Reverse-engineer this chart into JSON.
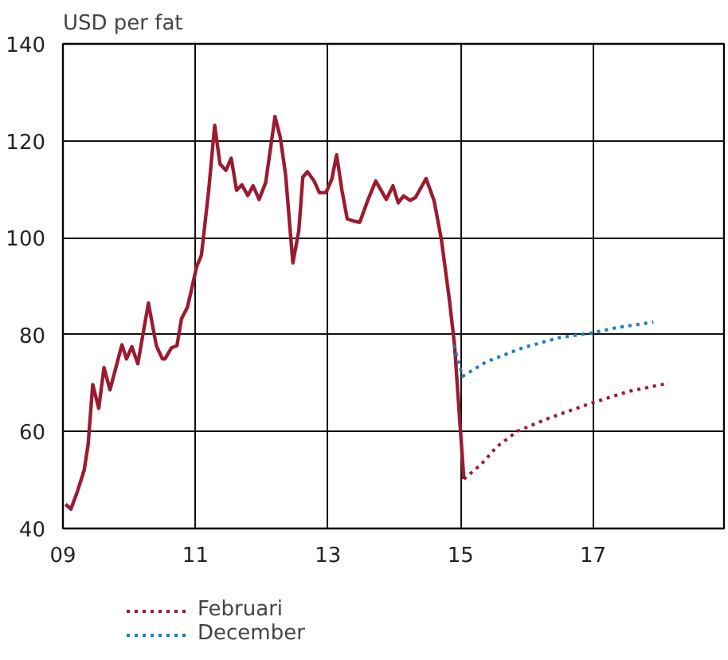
{
  "chart_data": {
    "type": "line",
    "title": "USD per fat",
    "xlim": [
      2009,
      2019
    ],
    "ylim": [
      40,
      140
    ],
    "xticks": [
      {
        "value": 2009,
        "label": "09"
      },
      {
        "value": 2011,
        "label": "11"
      },
      {
        "value": 2013,
        "label": "13"
      },
      {
        "value": 2015,
        "label": "15"
      },
      {
        "value": 2017,
        "label": "17"
      }
    ],
    "yticks": [
      40,
      60,
      80,
      100,
      120,
      140
    ],
    "grid": true,
    "legend": "bottom left",
    "series": [
      {
        "color": "#9b1b30",
        "line_style": "solid",
        "x": [
          2009.04,
          2009.12,
          2009.22,
          2009.32,
          2009.38,
          2009.45,
          2009.54,
          2009.62,
          2009.71,
          2009.89,
          2009.96,
          2010.04,
          2010.13,
          2010.29,
          2010.41,
          2010.5,
          2010.54,
          2010.64,
          2010.72,
          2010.79,
          2010.88,
          2011.02,
          2011.09,
          2011.2,
          2011.29,
          2011.37,
          2011.46,
          2011.54,
          2011.62,
          2011.7,
          2011.79,
          2011.87,
          2011.96,
          2012.06,
          2012.2,
          2012.28,
          2012.36,
          2012.47,
          2012.56,
          2012.62,
          2012.69,
          2012.79,
          2012.87,
          2012.97,
          2013.06,
          2013.13,
          2013.21,
          2013.29,
          2013.39,
          2013.48,
          2013.6,
          2013.72,
          2013.88,
          2013.98,
          2014.06,
          2014.14,
          2014.24,
          2014.32,
          2014.48,
          2014.6,
          2014.71,
          2014.83,
          2014.91,
          2014.98,
          2015.05
        ],
        "values": [
          45,
          44,
          47.7,
          52,
          57.3,
          69.7,
          64.8,
          73.2,
          68.6,
          77.9,
          75,
          77.5,
          74,
          86.5,
          77.7,
          75,
          75,
          77.3,
          77.7,
          83.3,
          85.7,
          94.1,
          96.4,
          109.8,
          123.2,
          115.2,
          113.9,
          116.4,
          109.8,
          110.9,
          108.7,
          110.7,
          107.9,
          111.4,
          125,
          120.7,
          113,
          94.8,
          101.5,
          112.5,
          113.6,
          111.7,
          109.3,
          109.3,
          112.2,
          117.1,
          109.8,
          103.9,
          103.4,
          103.2,
          107.7,
          111.7,
          107.9,
          110.7,
          107.2,
          108.6,
          107.7,
          108.3,
          112.2,
          107.7,
          99.7,
          87.4,
          77.8,
          63.9,
          50.2
        ]
      },
      {
        "name": "Februari",
        "color": "#9b1b30",
        "line_style": "dotted",
        "x": [
          2015.05,
          2015.31,
          2015.55,
          2015.86,
          2016.34,
          2016.96,
          2017.54,
          2018.14
        ],
        "values": [
          50.2,
          53.2,
          56.9,
          60.1,
          62.8,
          65.8,
          68.3,
          70
        ]
      },
      {
        "name": "December",
        "color": "#1a7dc0",
        "line_style": "dotted",
        "x": [
          2014.9,
          2015.03,
          2015.39,
          2015.94,
          2016.5,
          2016.96,
          2017.38,
          2017.91
        ],
        "values": [
          77.8,
          71.4,
          74.4,
          77.3,
          79.4,
          80.3,
          81.5,
          82.6
        ]
      }
    ]
  }
}
